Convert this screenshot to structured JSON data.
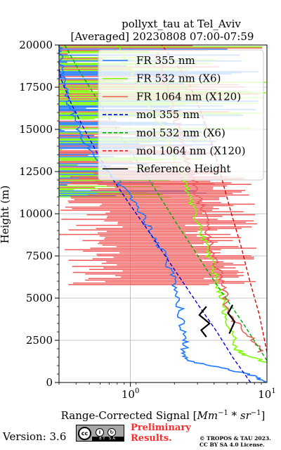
{
  "chart_data": {
    "type": "line",
    "title": "pollyxt_tau at Tel_Aviv",
    "subtitle": "[Averaged] 20230808 07:00-07:59",
    "xlabel": "Range-Corrected Signal [Mm^-1 * sr^-1]",
    "ylabel": "Height (m)",
    "x_scale": "log",
    "xlim": [
      0.3,
      10
    ],
    "ylim": [
      0,
      20000
    ],
    "yticks": [
      0,
      2500,
      5000,
      7500,
      10000,
      12500,
      15000,
      17500,
      20000
    ],
    "xticks": [
      1,
      10
    ],
    "grid": true,
    "legend_position": "top-right",
    "series": [
      {
        "name": "FR 355 nm",
        "color": "#1f77ff",
        "style": "solid",
        "points": [
          [
            10,
            0
          ],
          [
            8,
            400
          ],
          [
            5,
            800
          ],
          [
            2.6,
            1300
          ],
          [
            2.5,
            1800
          ],
          [
            2.5,
            2500
          ],
          [
            2.4,
            3500
          ],
          [
            2.3,
            4500
          ],
          [
            2.2,
            5500
          ],
          [
            2.0,
            6500
          ],
          [
            1.8,
            7500
          ],
          [
            1.5,
            8500
          ],
          [
            1.3,
            9500
          ],
          [
            1.1,
            10500
          ],
          [
            0.9,
            11500
          ],
          [
            0.7,
            12500
          ],
          [
            0.55,
            13500
          ],
          [
            0.45,
            14500
          ],
          [
            0.4,
            15500
          ],
          [
            0.36,
            16500
          ],
          [
            0.33,
            17500
          ],
          [
            0.31,
            18500
          ],
          [
            0.3,
            19500
          ],
          [
            0.3,
            20000
          ]
        ]
      },
      {
        "name": "FR 532 nm (X6)",
        "color": "#7cfc00",
        "style": "solid",
        "points": [
          [
            10,
            1200
          ],
          [
            7,
            1600
          ],
          [
            6,
            2000
          ],
          [
            5.5,
            3000
          ],
          [
            5,
            4000
          ],
          [
            4.7,
            5000
          ],
          [
            4.3,
            6000
          ],
          [
            4,
            7000
          ],
          [
            3.6,
            8000
          ],
          [
            3.3,
            9000
          ],
          [
            3,
            10000
          ],
          [
            2.7,
            11000
          ],
          [
            2.5,
            12000
          ],
          [
            2.2,
            13000
          ],
          [
            1.9,
            14000
          ],
          [
            1.7,
            15000
          ],
          [
            1.5,
            16000
          ],
          [
            1.3,
            17000
          ],
          [
            1.1,
            18000
          ],
          [
            0.9,
            19000
          ],
          [
            0.8,
            20000
          ]
        ]
      },
      {
        "name": "FR 1064 nm (X120)",
        "color": "#f05a5a",
        "style": "solid",
        "points": [
          [
            9,
            1800
          ],
          [
            8,
            2500
          ],
          [
            6,
            3500
          ],
          [
            5,
            4500
          ],
          [
            5,
            5500
          ],
          [
            4.5,
            6500
          ],
          [
            4,
            7500
          ],
          [
            3.8,
            8500
          ],
          [
            3.6,
            9500
          ],
          [
            3.3,
            10500
          ],
          [
            3,
            11500
          ],
          [
            2.8,
            12500
          ],
          [
            2.5,
            13500
          ],
          [
            2.3,
            14500
          ],
          [
            2.2,
            15500
          ],
          [
            2,
            16500
          ],
          [
            1.8,
            17500
          ],
          [
            1.7,
            18500
          ],
          [
            1.6,
            19500
          ]
        ]
      },
      {
        "name": "mol 355 nm",
        "color": "#0000dd",
        "style": "dashed",
        "points": [
          [
            7.6,
            0
          ],
          [
            5.6,
            1500
          ],
          [
            4.3,
            3000
          ],
          [
            3.2,
            4500
          ],
          [
            2.4,
            6000
          ],
          [
            1.8,
            7500
          ],
          [
            1.35,
            9000
          ],
          [
            1.0,
            10500
          ],
          [
            0.75,
            12000
          ],
          [
            0.58,
            13500
          ],
          [
            0.46,
            15000
          ],
          [
            0.37,
            16500
          ],
          [
            0.31,
            18000
          ],
          [
            0.3,
            18600
          ]
        ]
      },
      {
        "name": "mol 532 nm (X6)",
        "color": "#00aa00",
        "style": "dashed",
        "points": [
          [
            10,
            1300
          ],
          [
            8.8,
            2000
          ],
          [
            6.7,
            3500
          ],
          [
            5.0,
            5000
          ],
          [
            3.75,
            6500
          ],
          [
            2.85,
            8000
          ],
          [
            2.15,
            9500
          ],
          [
            1.65,
            11000
          ],
          [
            1.25,
            12500
          ],
          [
            0.95,
            14000
          ],
          [
            0.72,
            15500
          ],
          [
            0.55,
            17000
          ],
          [
            0.42,
            18500
          ],
          [
            0.33,
            20000
          ]
        ]
      },
      {
        "name": "mol 1064 nm (X120)",
        "color": "#dd0000",
        "style": "dashed",
        "points": [
          [
            10,
            1800
          ],
          [
            8.8,
            4000
          ],
          [
            7.5,
            6000
          ],
          [
            6.5,
            8000
          ],
          [
            5.5,
            10000
          ],
          [
            4.7,
            12000
          ],
          [
            4.0,
            14000
          ],
          [
            3.3,
            16000
          ],
          [
            2.6,
            18000
          ],
          [
            1.7,
            20000
          ]
        ]
      },
      {
        "name": "Reference Height",
        "color": "#000000",
        "style": "solid",
        "points": [
          [
            3.6,
            2700
          ],
          [
            3.3,
            3100
          ],
          [
            3.8,
            3500
          ],
          [
            3.2,
            4000
          ],
          [
            3.6,
            4500
          ],
          [
            5.3,
            2900
          ],
          [
            5.8,
            3600
          ],
          [
            5.2,
            4100
          ],
          [
            5.6,
            4600
          ]
        ]
      }
    ]
  },
  "footer": {
    "version": "Version: 3.6",
    "license_badge": "BY SA",
    "preliminary_line1": "Preliminary",
    "preliminary_line2": "Results.",
    "copyright_line1": "© TROPOS & TAU 2023.",
    "copyright_line2": "CC BY SA 4.0 License."
  }
}
